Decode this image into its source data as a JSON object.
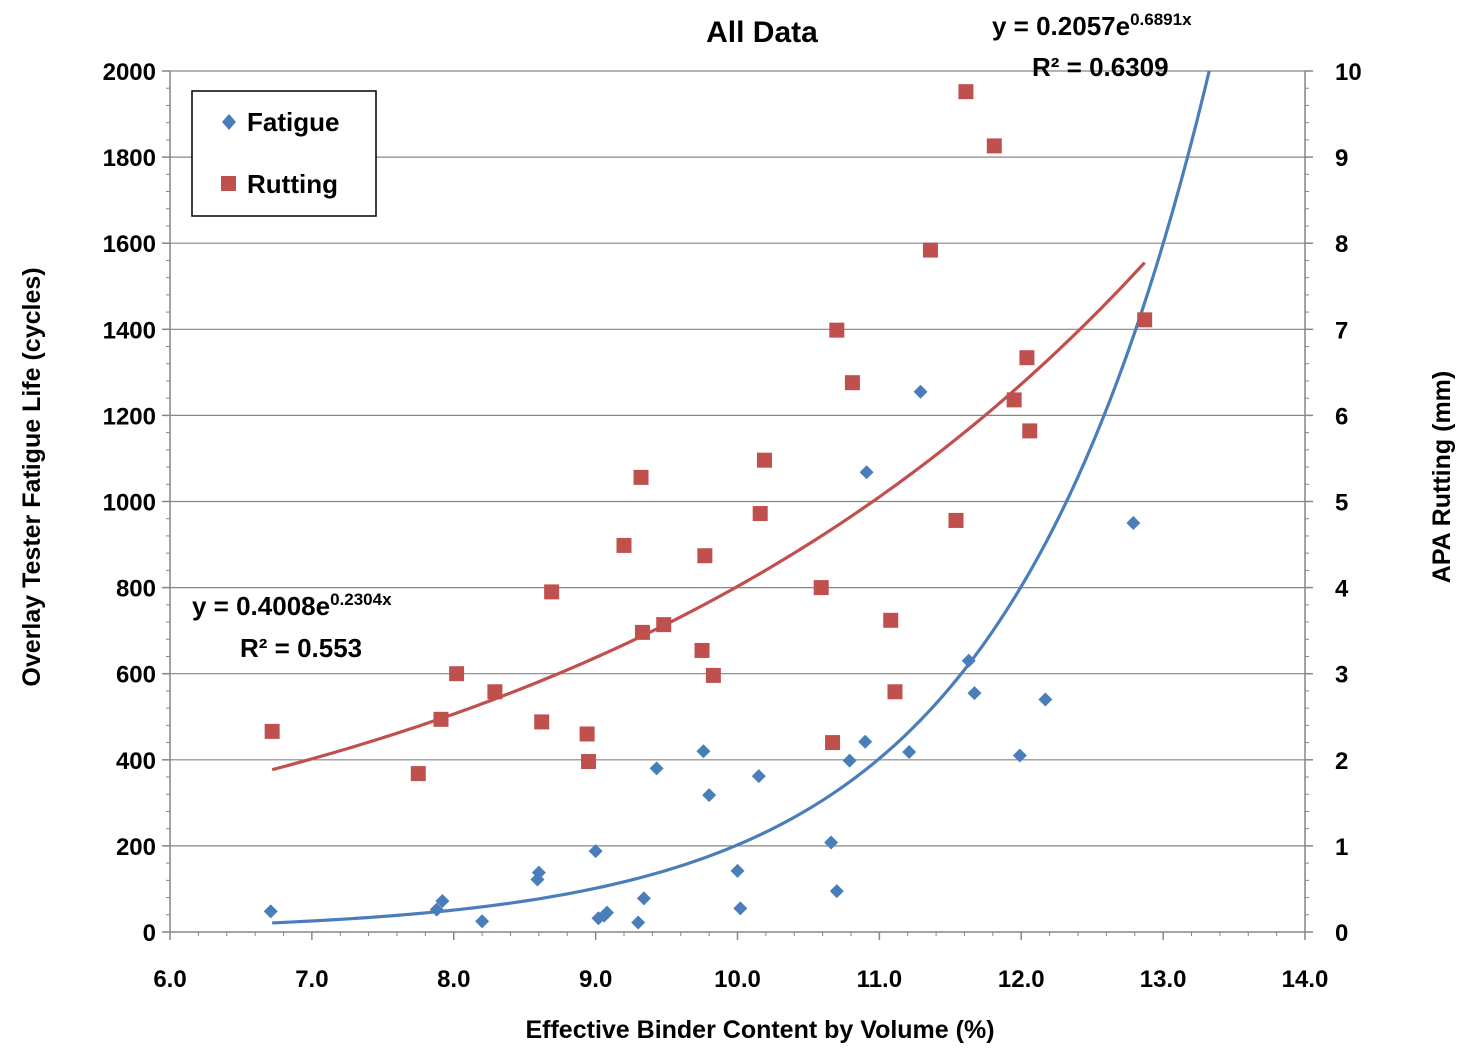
{
  "chart_data": {
    "type": "scatter",
    "title": "All Data",
    "xlabel": "Effective Binder Content by Volume (%)",
    "ylabel_left": "Overlay Tester Fatigue Life (cycles)",
    "ylabel_right": "APA Rutting (mm)",
    "xlim": [
      6.0,
      14.0
    ],
    "ylim_left": [
      0,
      2000
    ],
    "ylim_right": [
      0,
      10
    ],
    "x_ticks": [
      "6.0",
      "7.0",
      "8.0",
      "9.0",
      "10.0",
      "11.0",
      "12.0",
      "13.0",
      "14.0"
    ],
    "y_left_ticks": [
      "0",
      "200",
      "400",
      "600",
      "800",
      "1000",
      "1200",
      "1400",
      "1600",
      "1800",
      "2000"
    ],
    "y_right_ticks": [
      "0",
      "1",
      "2",
      "3",
      "4",
      "5",
      "6",
      "7",
      "8",
      "9",
      "10"
    ],
    "grid": "horizontal",
    "legend_position": "top-left",
    "series": [
      {
        "name": "Fatigue",
        "axis": "left",
        "marker": "diamond",
        "color": "#4A7EBB",
        "x": [
          6.71,
          7.88,
          7.92,
          8.2,
          8.59,
          8.6,
          9.0,
          9.02,
          9.06,
          9.08,
          9.3,
          9.34,
          9.43,
          9.76,
          9.8,
          10.0,
          10.02,
          10.15,
          10.66,
          10.7,
          10.79,
          10.9,
          10.91,
          11.21,
          11.29,
          11.63,
          11.67,
          11.99,
          12.17,
          12.79
        ],
        "y": [
          48,
          52,
          72,
          25,
          122,
          138,
          188,
          32,
          38,
          45,
          22,
          78,
          380,
          420,
          318,
          142,
          55,
          362,
          208,
          95,
          398,
          442,
          1068,
          418,
          1255,
          630,
          555,
          410,
          540,
          950
        ]
      },
      {
        "name": "Rutting",
        "axis": "right",
        "marker": "square",
        "color": "#C0504D",
        "x": [
          6.72,
          7.75,
          7.91,
          8.02,
          8.29,
          8.62,
          8.69,
          8.94,
          8.95,
          9.2,
          9.32,
          9.33,
          9.48,
          9.75,
          9.77,
          9.83,
          10.16,
          10.19,
          10.59,
          10.67,
          10.7,
          10.81,
          11.08,
          11.11,
          11.54,
          11.36,
          11.61,
          11.81,
          11.95,
          12.04,
          12.06,
          12.87
        ],
        "y": [
          2.33,
          1.84,
          2.47,
          3.0,
          2.79,
          2.44,
          3.95,
          2.3,
          1.98,
          4.49,
          5.28,
          3.48,
          3.57,
          3.27,
          4.37,
          2.98,
          4.86,
          5.48,
          4.0,
          2.2,
          6.99,
          6.38,
          3.62,
          2.79,
          4.78,
          7.92,
          9.76,
          9.13,
          6.18,
          6.67,
          5.82,
          7.11
        ]
      }
    ],
    "trendlines": [
      {
        "series": "Fatigue",
        "type": "exponential",
        "a": 0.2057,
        "b": 0.6891,
        "x_range": [
          6.72,
          13.4
        ],
        "equation_prefix": "y = 0.2057e",
        "equation_exponent": "0.6891x",
        "r2_label": "R² = 0.6309"
      },
      {
        "series": "Rutting",
        "type": "exponential",
        "a": 0.4008,
        "b": 0.2304,
        "x_range": [
          6.72,
          12.87
        ],
        "equation_prefix": "y = 0.4008e",
        "equation_exponent": "0.2304x",
        "r2_label": "R² = 0.553"
      }
    ]
  }
}
